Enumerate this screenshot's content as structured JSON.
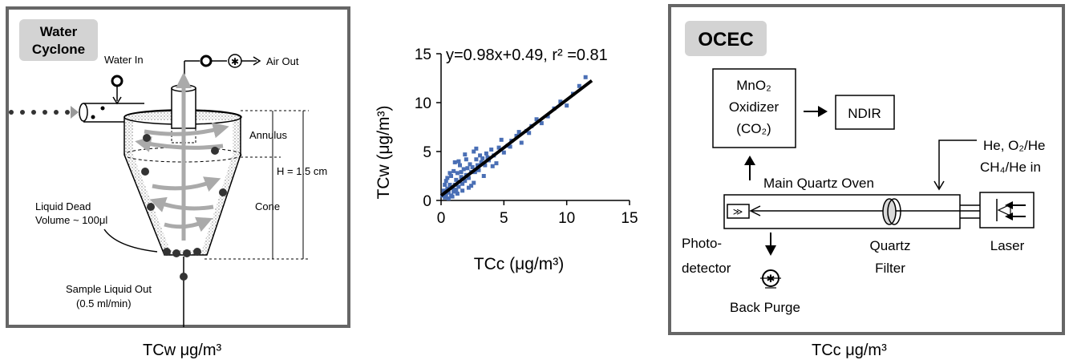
{
  "cyclone": {
    "title_line1": "Water",
    "title_line2": "Cyclone",
    "water_in": "Water In",
    "air_out": "Air Out",
    "annulus": "Annulus",
    "height": "H = 1.5 cm",
    "cone": "Cone",
    "dead_volume_line1": "Liquid Dead",
    "dead_volume_line2": "Volume ~ 100μl",
    "sample_out_line1": "Sample Liquid Out",
    "sample_out_line2": "(0.5 ml/min)",
    "caption": "TCw  μg/m³"
  },
  "chart_data": {
    "type": "scatter",
    "title": "",
    "annotation": "y=0.98x+0.49, r² =0.81",
    "xlabel": "TCc  (μg/m³)",
    "ylabel": "TCw  (μg/m³)",
    "xlim": [
      0,
      15
    ],
    "ylim": [
      0,
      15
    ],
    "xticks": [
      "0",
      "5",
      "10",
      "15"
    ],
    "yticks": [
      "0",
      "5",
      "10",
      "15"
    ],
    "grid": false,
    "series": [
      {
        "color": "#4a6fb5",
        "x": [
          0.1,
          0.2,
          0.3,
          0.3,
          0.4,
          0.5,
          0.5,
          0.6,
          0.7,
          0.8,
          0.8,
          0.9,
          1.0,
          1.0,
          1.1,
          1.2,
          1.2,
          1.3,
          1.4,
          1.5,
          1.5,
          1.6,
          1.7,
          1.8,
          1.9,
          2.0,
          2.0,
          2.1,
          2.2,
          2.3,
          2.4,
          2.5,
          2.6,
          2.7,
          2.8,
          2.9,
          3.0,
          3.1,
          3.2,
          3.3,
          3.5,
          3.6,
          3.8,
          4.0,
          4.2,
          4.4,
          4.6,
          4.8,
          5.0,
          5.3,
          5.6,
          6.0,
          6.4,
          6.8,
          7.2,
          7.6,
          8.0,
          8.5,
          9.0,
          9.5,
          10.0,
          10.5,
          11.0,
          11.5,
          0.6,
          0.9,
          1.3,
          1.7,
          2.2,
          2.6,
          3.4,
          4.1,
          0.4,
          1.1,
          1.9,
          2.8,
          3.7,
          1.4,
          2.4,
          0.7,
          1.6,
          0.3,
          5.5,
          6.2,
          7.0
        ],
        "y": [
          0.5,
          1.0,
          0.3,
          1.6,
          0.6,
          1.2,
          2.3,
          0.8,
          1.6,
          0.5,
          2.5,
          1.3,
          0.9,
          3.0,
          1.6,
          1.1,
          2.1,
          2.8,
          1.4,
          1.9,
          3.6,
          2.4,
          1.7,
          3.2,
          2.0,
          2.6,
          4.2,
          3.3,
          2.3,
          3.7,
          2.9,
          3.4,
          5.0,
          2.9,
          4.2,
          3.6,
          3.1,
          4.6,
          3.9,
          4.3,
          3.6,
          4.8,
          4.1,
          5.2,
          4.6,
          3.8,
          5.4,
          6.2,
          4.9,
          5.6,
          6.1,
          6.6,
          5.9,
          7.1,
          7.6,
          8.3,
          7.9,
          8.6,
          9.4,
          10.1,
          9.7,
          10.9,
          11.7,
          12.6,
          0.2,
          0.4,
          0.7,
          1.0,
          1.3,
          1.8,
          2.5,
          3.5,
          2.0,
          3.9,
          4.7,
          5.3,
          4.4,
          4.0,
          1.5,
          2.8,
          2.9,
          0.9,
          5.5,
          7.0,
          6.9
        ]
      }
    ],
    "fit_line": {
      "slope": 0.98,
      "intercept": 0.49,
      "x_range": [
        0,
        12
      ]
    }
  },
  "ocec": {
    "title": "OCEC",
    "oxidizer_line1": "MnO₂",
    "oxidizer_line2": "Oxidizer",
    "oxidizer_line3": "(CO₂)",
    "ndir": "NDIR",
    "gas_line1": "He, O₂/He",
    "gas_line2": "CH₄/He in",
    "oven": "Main Quartz Oven",
    "photo_line1": "Photo-",
    "photo_line2": "detector",
    "filter_line1": "Quartz",
    "filter_line2": "Filter",
    "laser": "Laser",
    "back_purge": "Back Purge",
    "caption": "TCc  μg/m³"
  }
}
